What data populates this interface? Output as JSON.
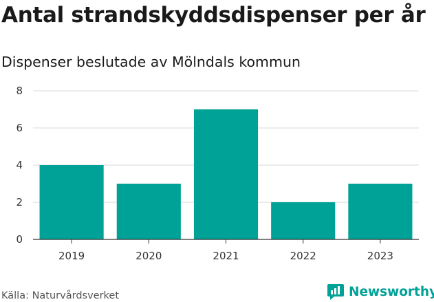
{
  "chart_data": {
    "type": "bar",
    "title": "Antal strandskyddsdispenser per år",
    "subtitle": "Dispenser beslutade av Mölndals kommun",
    "categories": [
      "2019",
      "2020",
      "2021",
      "2022",
      "2023"
    ],
    "values": [
      4,
      3,
      7,
      2,
      3
    ],
    "xlabel": "",
    "ylabel": "",
    "ylim": [
      0,
      8
    ],
    "yticks": [
      0,
      2,
      4,
      6,
      8
    ],
    "grid": true,
    "bar_color": "#00a196"
  },
  "footer": {
    "source": "Källa: Naturvårdsverket",
    "brand": "Newsworthy",
    "brand_icon": "newsworthy-logo-icon",
    "brand_color": "#00a196"
  }
}
